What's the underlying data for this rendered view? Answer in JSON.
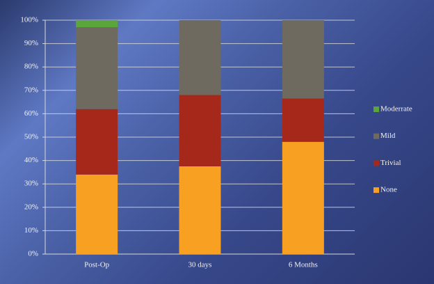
{
  "chart_data": {
    "type": "stacked_bar_percent",
    "categories": [
      "Post-Op",
      "30 days",
      "6 Months"
    ],
    "series": [
      {
        "name": "None",
        "color": "#f7a021",
        "values": [
          34,
          37.5,
          48
        ]
      },
      {
        "name": "Trivial",
        "color": "#a5281b",
        "values": [
          28,
          30.5,
          18.5
        ]
      },
      {
        "name": "Mild",
        "color": "#6f6a5f",
        "values": [
          35,
          32,
          33.5
        ]
      },
      {
        "name": "Moderrate",
        "color": "#5aa53c",
        "values": [
          3,
          0,
          0
        ]
      }
    ],
    "ylim": [
      0,
      100
    ],
    "yticks": [
      {
        "value": 0,
        "label": "0%"
      },
      {
        "value": 10,
        "label": "10%"
      },
      {
        "value": 20,
        "label": "20%"
      },
      {
        "value": 30,
        "label": "30%"
      },
      {
        "value": 40,
        "label": "40%"
      },
      {
        "value": 50,
        "label": "50%"
      },
      {
        "value": 60,
        "label": "60%"
      },
      {
        "value": 70,
        "label": "70%"
      },
      {
        "value": 80,
        "label": "80%"
      },
      {
        "value": 90,
        "label": "90%"
      },
      {
        "value": 100,
        "label": "100%"
      }
    ],
    "grid": true,
    "legend": "right"
  }
}
